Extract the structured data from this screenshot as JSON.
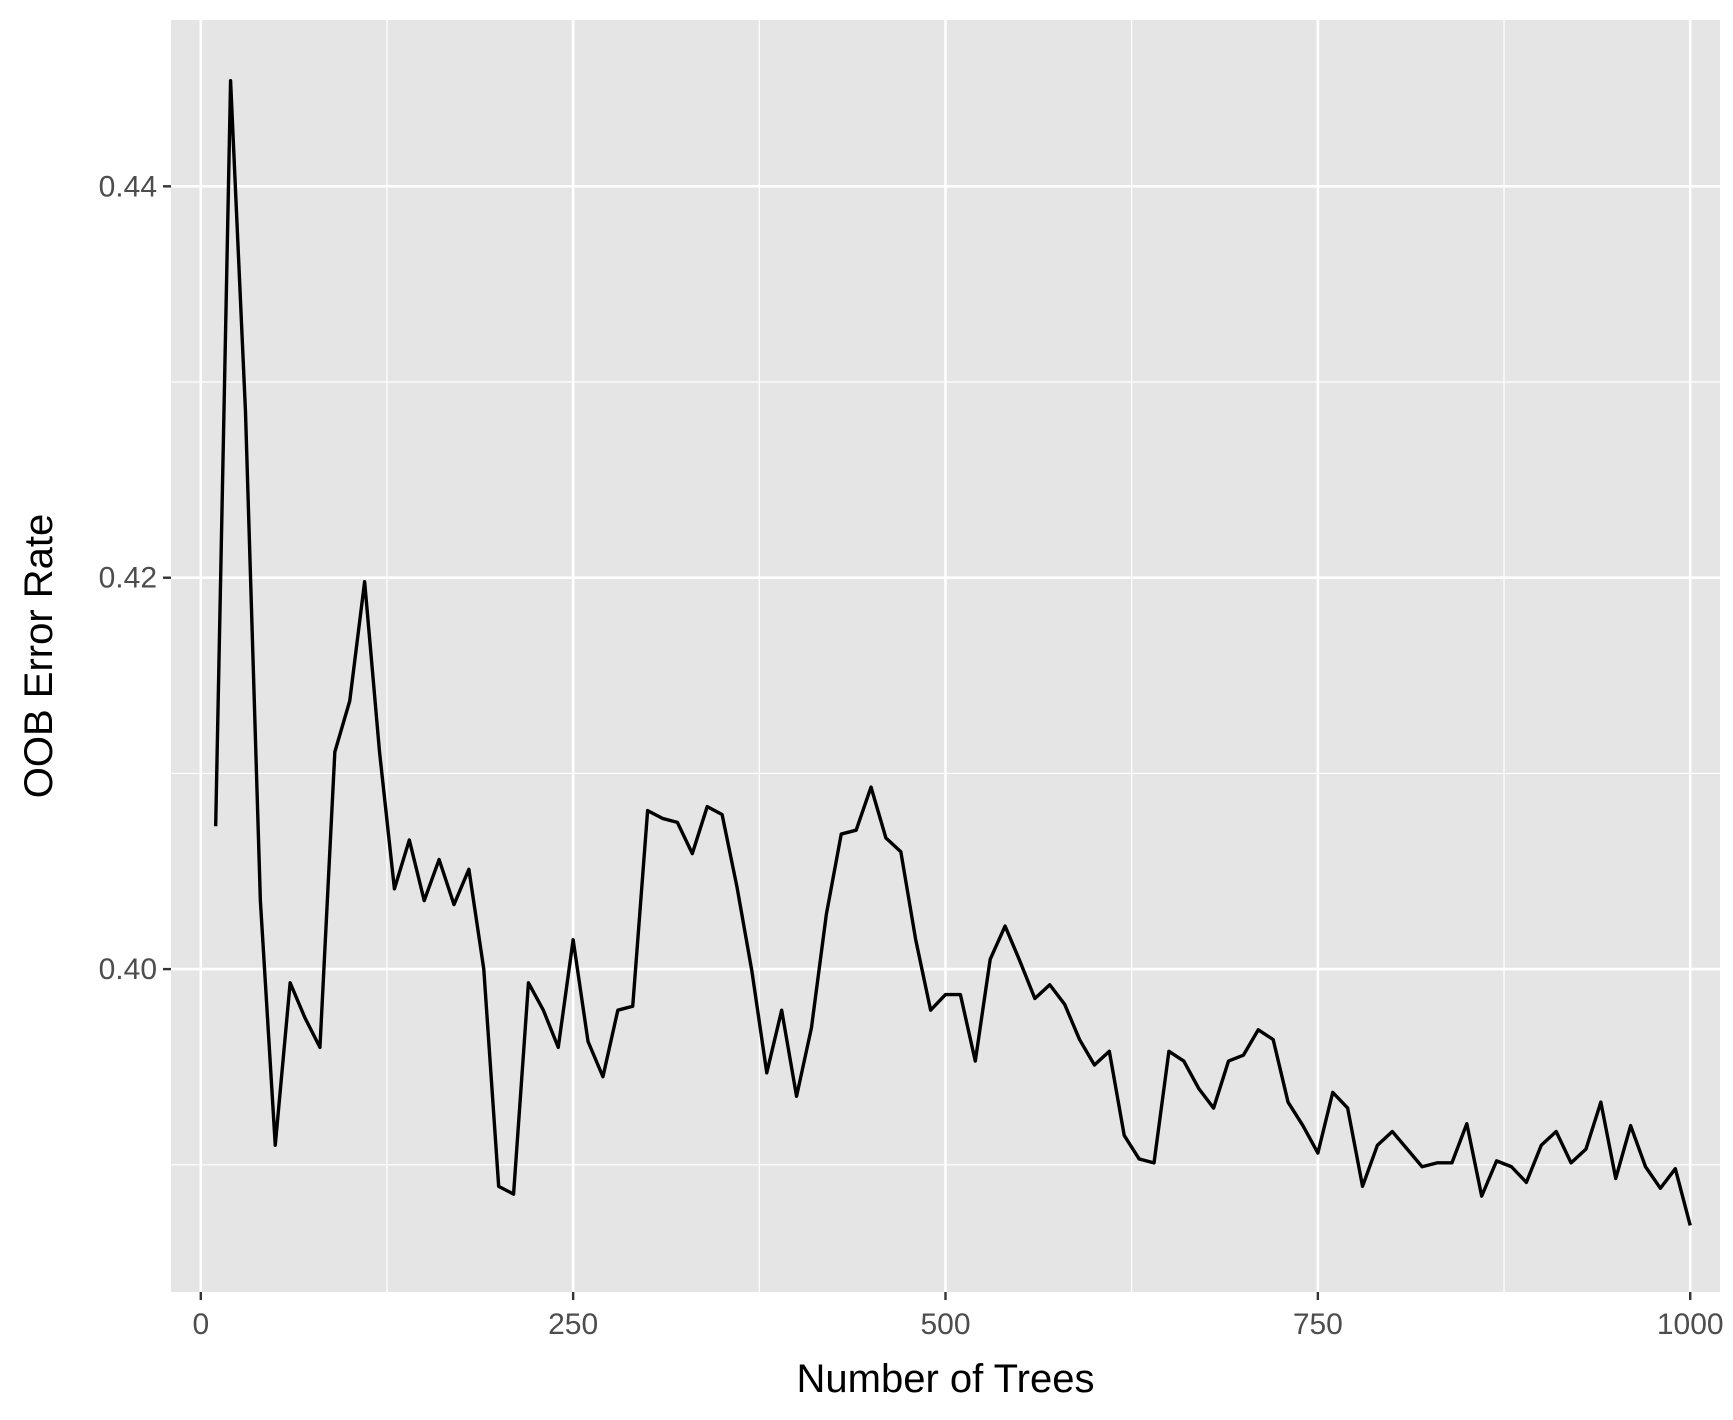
{
  "chart_data": {
    "type": "line",
    "title": "",
    "xlabel": "Number of Trees",
    "ylabel": "OOB Error Rate",
    "xlim": [
      -20,
      1020
    ],
    "ylim": [
      0.3835,
      0.4485
    ],
    "x_ticks": [
      0,
      250,
      500,
      750,
      1000
    ],
    "x_tick_labels": [
      "0",
      "250",
      "500",
      "750",
      "1000"
    ],
    "y_ticks": [
      0.4,
      0.42,
      0.44
    ],
    "y_tick_labels": [
      "0.40",
      "0.42",
      "0.44"
    ],
    "grid": true,
    "legend": "none",
    "colors": {
      "panel": "#e5e5e5",
      "grid": "#ffffff",
      "line": "#000000",
      "tick_text": "#4d4d4d"
    },
    "series": [
      {
        "x": [
          10,
          20,
          30,
          40,
          50,
          60,
          70,
          80,
          90,
          100,
          110,
          120,
          130,
          140,
          150,
          160,
          170,
          180,
          190,
          200,
          210,
          220,
          230,
          240,
          250,
          260,
          270,
          280,
          290,
          300,
          310,
          320,
          330,
          340,
          350,
          360,
          370,
          380,
          390,
          400,
          410,
          420,
          430,
          440,
          450,
          460,
          470,
          480,
          490,
          500,
          510,
          520,
          530,
          540,
          550,
          560,
          570,
          580,
          590,
          600,
          610,
          620,
          630,
          640,
          650,
          660,
          670,
          680,
          690,
          700,
          710,
          720,
          730,
          740,
          750,
          760,
          770,
          780,
          790,
          800,
          810,
          820,
          830,
          840,
          850,
          860,
          870,
          880,
          890,
          900,
          910,
          920,
          930,
          940,
          950,
          960,
          970,
          980,
          990,
          1000
        ],
        "values": [
          0.4073,
          0.4454,
          0.4285,
          0.4035,
          0.391,
          0.3993,
          0.3975,
          0.396,
          0.4111,
          0.4137,
          0.4198,
          0.4111,
          0.4041,
          0.4066,
          0.4035,
          0.4056,
          0.4033,
          0.4051,
          0.4,
          0.3889,
          0.3885,
          0.3993,
          0.3979,
          0.396,
          0.4015,
          0.3963,
          0.3945,
          0.3979,
          0.3981,
          0.4081,
          0.4077,
          0.4075,
          0.4059,
          0.4083,
          0.4079,
          0.4042,
          0.3999,
          0.3947,
          0.3979,
          0.3935,
          0.397,
          0.4028,
          0.4069,
          0.4071,
          0.4093,
          0.4067,
          0.406,
          0.4015,
          0.3979,
          0.3987,
          0.3987,
          0.3953,
          0.4005,
          0.4022,
          0.4004,
          0.3985,
          0.3992,
          0.3982,
          0.3964,
          0.3951,
          0.3958,
          0.3915,
          0.3903,
          0.3901,
          0.3958,
          0.3953,
          0.3939,
          0.3929,
          0.3953,
          0.3956,
          0.3969,
          0.3964,
          0.3932,
          0.392,
          0.3906,
          0.3937,
          0.3929,
          0.3889,
          0.391,
          0.3917,
          0.3908,
          0.3899,
          0.3901,
          0.3901,
          0.3921,
          0.3884,
          0.3902,
          0.3899,
          0.3891,
          0.391,
          0.3917,
          0.3901,
          0.3908,
          0.3932,
          0.3893,
          0.392,
          0.3899,
          0.3888,
          0.3898,
          0.3869
        ]
      }
    ]
  }
}
